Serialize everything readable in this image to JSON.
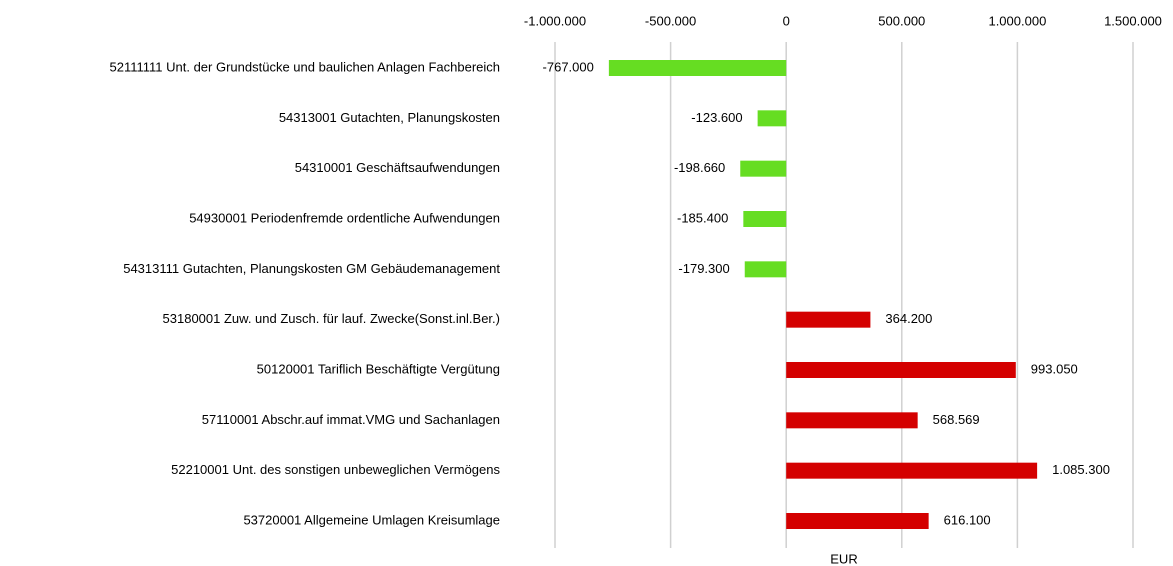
{
  "chart_data": {
    "type": "barh",
    "x_label": "EUR",
    "categories": [
      "52111111 Unt. der Grundstücke und baulichen Anlagen Fachbereich",
      "54313001 Gutachten, Planungskosten",
      "54310001 Geschäftsaufwendungen",
      "54930001 Periodenfremde ordentliche Aufwendungen",
      "54313111 Gutachten, Planungskosten GM Gebäudemanagement",
      "53180001 Zuw. und Zusch. für lauf. Zwecke(Sonst.inl.Ber.)",
      "50120001 Tariflich Beschäftigte Vergütung",
      "57110001 Abschr.auf immat.VMG und Sachanlagen",
      "52210001 Unt. des sonstigen unbeweglichen Vermögens",
      "53720001 Allgemeine Umlagen Kreisumlage"
    ],
    "values": [
      -767000,
      -123600,
      -198660,
      -185400,
      -179300,
      364200,
      993050,
      568569,
      1085300,
      616100
    ],
    "value_labels": [
      "-767.000",
      "-123.600",
      "-198.660",
      "-185.400",
      "-179.300",
      "364.200",
      "993.050",
      "568.569",
      "1.085.300",
      "616.100"
    ],
    "colors": [
      "#66dd22",
      "#66dd22",
      "#66dd22",
      "#66dd22",
      "#66dd22",
      "#d40000",
      "#d40000",
      "#d40000",
      "#d40000",
      "#d40000"
    ],
    "xlim": [
      -1000000,
      1500000
    ],
    "xticks": [
      {
        "value": -1000000,
        "label": "-1.000.000"
      },
      {
        "value": -500000,
        "label": "-500.000"
      },
      0,
      {
        "value": 500000,
        "label": "500.000"
      },
      {
        "value": 1000000,
        "label": "1.000.000"
      },
      {
        "value": 1500000,
        "label": "1.500.000"
      }
    ],
    "grid": true
  }
}
